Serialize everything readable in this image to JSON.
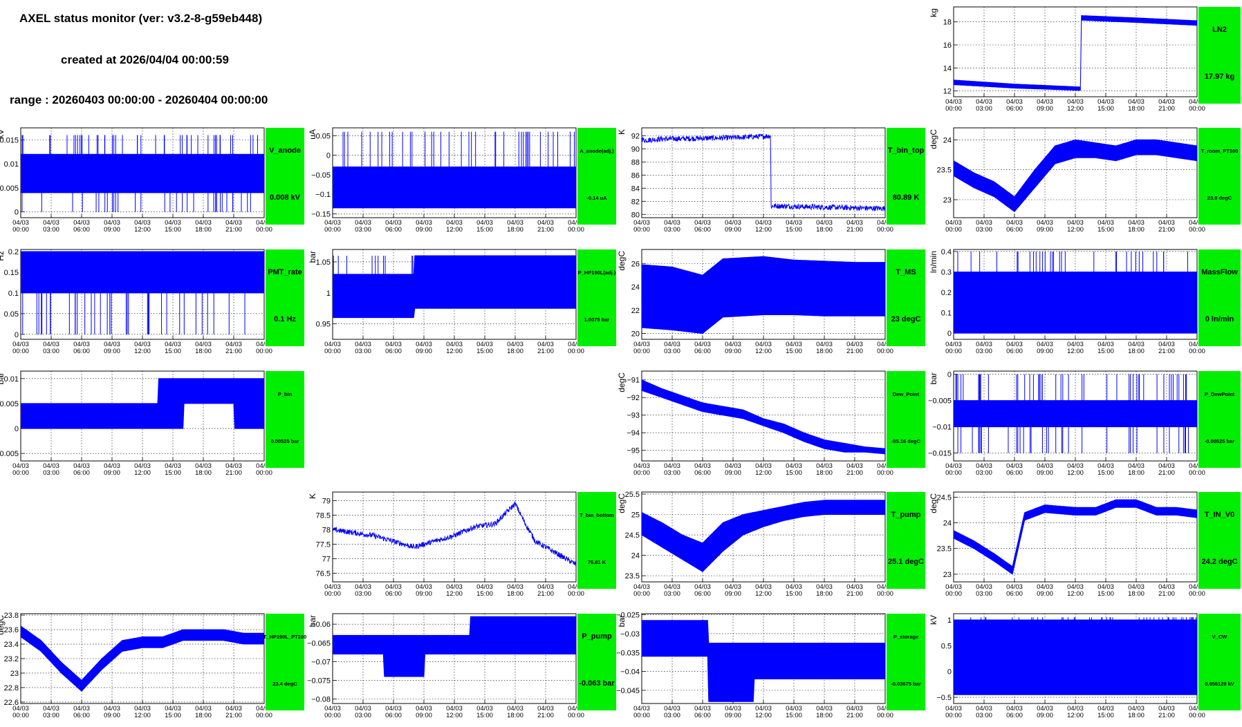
{
  "header": {
    "title": "AXEL status monitor (ver: v3.2-8-g59eb448)",
    "created": "created at 2026/04/04 00:00:59",
    "range": "range : 20260403 00:00:00 - 20260404 00:00:00"
  },
  "colors": {
    "trace": "#0000ff",
    "status_panel": "#00ee00",
    "grid": "#000000"
  },
  "time_ticks": [
    [
      "04/03",
      "00:00"
    ],
    [
      "04/03",
      "03:00"
    ],
    [
      "04/03",
      "06:00"
    ],
    [
      "04/03",
      "09:00"
    ],
    [
      "04/03",
      "12:00"
    ],
    [
      "04/03",
      "15:00"
    ],
    [
      "04/03",
      "18:00"
    ],
    [
      "04/03",
      "21:00"
    ],
    [
      "04/04",
      "00:00"
    ]
  ],
  "chart_data": [
    {
      "id": "LN2",
      "type": "line",
      "x_range_hours": [
        0,
        24
      ],
      "grid": true,
      "ylabel": "kg",
      "yticks": [
        "12",
        "14",
        "16",
        "18"
      ],
      "ytick_values": [
        12,
        14,
        16,
        18
      ],
      "ylim": [
        11.5,
        19.3
      ],
      "label": "LN2",
      "value": "17.97 kg",
      "style": "band",
      "x": [
        0,
        6,
        12.5,
        12.55,
        18,
        24
      ],
      "y_min": [
        12.55,
        12.25,
        12.05,
        18.15,
        17.95,
        17.7
      ],
      "y_max": [
        12.95,
        12.6,
        12.35,
        18.55,
        18.35,
        18.1
      ]
    },
    {
      "id": "V_anode",
      "type": "line",
      "x_range_hours": [
        0,
        24
      ],
      "grid": true,
      "ylabel": "kV",
      "yticks": [
        "0",
        "0.005",
        "0.01",
        "0.015"
      ],
      "ytick_values": [
        0,
        0.005,
        0.01,
        0.015
      ],
      "ylim": [
        -0.0012,
        0.0175
      ],
      "label": "V_anode",
      "value": "0.008 kV",
      "style": "band",
      "x": [
        0,
        24
      ],
      "y_min": [
        0.004,
        0.004
      ],
      "y_max": [
        0.012,
        0.012
      ],
      "spikes_up": 0.016,
      "spikes_down": 0
    },
    {
      "id": "A_anode(adj.)",
      "type": "line",
      "x_range_hours": [
        0,
        24
      ],
      "grid": true,
      "ylabel": "uA",
      "yticks": [
        "−0.15",
        "−0.1",
        "−0.05",
        "0",
        "0.05"
      ],
      "ytick_values": [
        -0.15,
        -0.1,
        -0.05,
        0,
        0.05
      ],
      "ylim": [
        -0.16,
        0.07
      ],
      "label": "A_anode(adj.)",
      "value": "-0.14 uA",
      "style": "band",
      "label_small": true,
      "x": [
        0,
        24
      ],
      "y_min": [
        -0.135,
        -0.135
      ],
      "y_max": [
        -0.03,
        -0.03
      ],
      "spikes_up": 0.06
    },
    {
      "id": "T_bin_top",
      "type": "line",
      "x_range_hours": [
        0,
        24
      ],
      "grid": true,
      "ylabel": "K",
      "yticks": [
        "80",
        "82",
        "84",
        "86",
        "88",
        "90",
        "92"
      ],
      "ytick_values": [
        80,
        82,
        84,
        86,
        88,
        90,
        92
      ],
      "ylim": [
        79.5,
        93.2
      ],
      "label": "T_bin_top",
      "value": "80.89 K",
      "style": "line",
      "x": [
        0,
        0.2,
        2,
        6,
        9,
        12,
        12.7,
        12.75,
        13,
        18,
        21,
        24
      ],
      "y": [
        91.7,
        91.3,
        91.5,
        91.6,
        91.7,
        91.9,
        92.0,
        81.2,
        81.3,
        81.1,
        81.0,
        80.9
      ]
    },
    {
      "id": "T_room_PT100",
      "type": "line",
      "x_range_hours": [
        0,
        24
      ],
      "grid": true,
      "ylabel": "degC",
      "yticks": [
        "23",
        "23.5",
        "24"
      ],
      "ytick_values": [
        23,
        23.5,
        24
      ],
      "ylim": [
        22.7,
        24.2
      ],
      "label": "T_room_PT100",
      "value": "23.9 degC",
      "style": "band",
      "label_small": true,
      "x": [
        0,
        2,
        4,
        6,
        8,
        10,
        12,
        14,
        16,
        18,
        20,
        22,
        24
      ],
      "y_min": [
        23.4,
        23.2,
        23.05,
        22.8,
        23.2,
        23.6,
        23.7,
        23.7,
        23.65,
        23.75,
        23.75,
        23.7,
        23.65
      ],
      "y_max": [
        23.65,
        23.45,
        23.3,
        23.05,
        23.5,
        23.9,
        24.0,
        23.95,
        23.9,
        24.0,
        24.0,
        23.95,
        23.9
      ]
    },
    {
      "id": "PMT_rate",
      "type": "line",
      "x_range_hours": [
        0,
        24
      ],
      "grid": true,
      "ylabel": "Hz",
      "yticks": [
        "0",
        "0.05",
        "0.1",
        "0.15",
        "0.2"
      ],
      "ytick_values": [
        0,
        0.05,
        0.1,
        0.15,
        0.2
      ],
      "ylim": [
        -0.012,
        0.205
      ],
      "label": "PMT_rate",
      "value": "0.1 Hz",
      "style": "band",
      "x": [
        0,
        24
      ],
      "y_min": [
        0.1,
        0.1
      ],
      "y_max": [
        0.2,
        0.2
      ],
      "spikes_down": 0
    },
    {
      "id": "P_HP190L(adj.)",
      "type": "line",
      "x_range_hours": [
        0,
        24
      ],
      "grid": true,
      "ylabel": "bar",
      "yticks": [
        "0.95",
        "1",
        "1.05"
      ],
      "ytick_values": [
        0.95,
        1,
        1.05
      ],
      "ylim": [
        0.925,
        1.07
      ],
      "label": "P_HP190L(adj.)",
      "value": "1.0075 bar",
      "style": "band",
      "label_small": true,
      "x": [
        0,
        8,
        8.05,
        24
      ],
      "y_min": [
        0.96,
        0.96,
        0.975,
        0.975
      ],
      "y_max": [
        1.03,
        1.03,
        1.06,
        1.06
      ],
      "spikes_up": 1.06
    },
    {
      "id": "T_MS",
      "type": "line",
      "x_range_hours": [
        0,
        24
      ],
      "grid": true,
      "ylabel": "degC",
      "yticks": [
        "20",
        "22",
        "24",
        "26"
      ],
      "ytick_values": [
        20,
        22,
        24,
        26
      ],
      "ylim": [
        19.5,
        27.2
      ],
      "label": "T_MS",
      "value": "23 degC",
      "style": "band",
      "x": [
        0,
        3,
        6,
        8,
        10,
        12,
        15,
        18,
        21,
        24
      ],
      "y_min": [
        20.5,
        20.3,
        20.0,
        21.4,
        21.5,
        21.6,
        21.6,
        21.5,
        21.5,
        21.5
      ],
      "y_max": [
        25.9,
        25.7,
        25.0,
        26.4,
        26.5,
        26.6,
        26.3,
        26.2,
        26.1,
        26.1
      ]
    },
    {
      "id": "MassFlow",
      "type": "line",
      "x_range_hours": [
        0,
        24
      ],
      "grid": true,
      "ylabel": "ln/min",
      "yticks": [
        "0",
        "0.1",
        "0.2",
        "0.3",
        "0.4"
      ],
      "ytick_values": [
        0,
        0.1,
        0.2,
        0.3,
        0.4
      ],
      "ylim": [
        -0.03,
        0.41
      ],
      "label": "MassFlow",
      "value": "0 ln/min",
      "style": "band",
      "x": [
        0,
        24
      ],
      "y_min": [
        0,
        0
      ],
      "y_max": [
        0.3,
        0.3
      ],
      "spikes_up": 0.4
    },
    {
      "id": "P_bin",
      "type": "line",
      "x_range_hours": [
        0,
        24
      ],
      "grid": true,
      "ylabel": "bar",
      "yticks": [
        "−0.005",
        "0",
        "0.005",
        "0.01"
      ],
      "ytick_values": [
        -0.005,
        0,
        0.005,
        0.01
      ],
      "ylim": [
        -0.0065,
        0.0115
      ],
      "label": "P_bin",
      "value": "0.00525 bar",
      "style": "band",
      "label_small": true,
      "x": [
        0,
        13.5,
        13.55,
        16,
        16.05,
        21,
        21.05,
        24
      ],
      "y_min": [
        0.0,
        0.0,
        0.0,
        0.0,
        0.005,
        0.005,
        0.0,
        0.0
      ],
      "y_max": [
        0.005,
        0.005,
        0.01,
        0.01,
        0.01,
        0.01,
        0.01,
        0.01
      ]
    },
    {
      "id": "Dew_Point",
      "type": "line",
      "x_range_hours": [
        0,
        24
      ],
      "grid": true,
      "ylabel": "degC",
      "yticks": [
        "−95",
        "−94",
        "−93",
        "−92",
        "−91"
      ],
      "ytick_values": [
        -95,
        -94,
        -93,
        -92,
        -91
      ],
      "ylim": [
        -95.6,
        -90.5
      ],
      "label": "Dew_Point",
      "value": "-95.16 degC",
      "style": "band",
      "label_small": true,
      "x": [
        0,
        2,
        4,
        6,
        8,
        10,
        12,
        14,
        16,
        18,
        20,
        22,
        24
      ],
      "y_min": [
        -91.6,
        -92.0,
        -92.4,
        -92.8,
        -93.0,
        -93.2,
        -93.6,
        -94.0,
        -94.5,
        -94.9,
        -95.1,
        -95.1,
        -95.2
      ],
      "y_max": [
        -91.0,
        -91.5,
        -91.9,
        -92.3,
        -92.5,
        -92.7,
        -93.2,
        -93.5,
        -94.0,
        -94.4,
        -94.6,
        -94.8,
        -94.9
      ]
    },
    {
      "id": "P_DewPoint",
      "type": "line",
      "x_range_hours": [
        0,
        24
      ],
      "grid": true,
      "ylabel": "bar",
      "yticks": [
        "−0.015",
        "−0.01",
        "−0.005",
        "0"
      ],
      "ytick_values": [
        -0.015,
        -0.01,
        -0.005,
        0
      ],
      "ylim": [
        -0.0165,
        0.0006
      ],
      "label": "P_DewPoint",
      "value": "-0.00525 bar",
      "style": "band",
      "label_small": true,
      "x": [
        0,
        24
      ],
      "y_min": [
        -0.01,
        -0.01
      ],
      "y_max": [
        -0.005,
        -0.005
      ],
      "spikes_up": 0,
      "spikes_down": -0.015
    },
    {
      "id": "T_bin_bottom",
      "type": "line",
      "x_range_hours": [
        0,
        24
      ],
      "grid": true,
      "ylabel": "K",
      "yticks": [
        "76.5",
        "77",
        "77.5",
        "78",
        "78.5",
        "79"
      ],
      "ytick_values": [
        76.5,
        77,
        77.5,
        78,
        78.5,
        79
      ],
      "ylim": [
        76.2,
        79.3
      ],
      "label": "T_bin_bottom",
      "value": "76.81 K",
      "style": "line",
      "label_small": true,
      "x": [
        0,
        2,
        4,
        6,
        8,
        10,
        12,
        14,
        16,
        18,
        19,
        20,
        22,
        24
      ],
      "y": [
        78.0,
        77.9,
        77.8,
        77.6,
        77.4,
        77.6,
        77.8,
        78.1,
        78.2,
        78.9,
        78.2,
        77.6,
        77.2,
        76.8
      ]
    },
    {
      "id": "T_pump",
      "type": "line",
      "x_range_hours": [
        0,
        24
      ],
      "grid": true,
      "ylabel": "degC",
      "yticks": [
        "23.5",
        "24",
        "24.5",
        "25",
        "25.5"
      ],
      "ytick_values": [
        23.5,
        24,
        24.5,
        25,
        25.5
      ],
      "ylim": [
        23.35,
        25.55
      ],
      "label": "T_pump",
      "value": "25.1 degC",
      "style": "band",
      "x": [
        0,
        2,
        4,
        6,
        8,
        10,
        12,
        14,
        16,
        18,
        20,
        22,
        24
      ],
      "y_min": [
        24.5,
        24.2,
        23.9,
        23.6,
        24.1,
        24.5,
        24.7,
        24.85,
        24.95,
        25.0,
        25.0,
        25.0,
        25.0
      ],
      "y_max": [
        25.05,
        24.8,
        24.5,
        24.3,
        24.8,
        25.0,
        25.1,
        25.2,
        25.3,
        25.35,
        25.35,
        25.35,
        25.35
      ]
    },
    {
      "id": "T_IN_V0",
      "type": "line",
      "x_range_hours": [
        0,
        24
      ],
      "grid": true,
      "ylabel": "degC",
      "yticks": [
        "23",
        "23.5",
        "24",
        "24.5"
      ],
      "ytick_values": [
        23,
        23.5,
        24,
        24.5
      ],
      "ylim": [
        22.85,
        24.6
      ],
      "label": "T_IN_V0",
      "value": "24.2 degC",
      "style": "band",
      "x": [
        0,
        2,
        4,
        5.8,
        7,
        9,
        12,
        14,
        16,
        18,
        20,
        22,
        24
      ],
      "y_min": [
        23.7,
        23.5,
        23.25,
        23.0,
        24.05,
        24.2,
        24.15,
        24.15,
        24.3,
        24.3,
        24.15,
        24.15,
        24.1
      ],
      "y_max": [
        23.85,
        23.65,
        23.4,
        23.15,
        24.2,
        24.35,
        24.3,
        24.3,
        24.45,
        24.45,
        24.3,
        24.3,
        24.25
      ]
    },
    {
      "id": "T_HP190L_PT100",
      "type": "line",
      "x_range_hours": [
        0,
        24
      ],
      "grid": true,
      "ylabel": "degC",
      "yticks": [
        "22.6",
        "22.8",
        "23",
        "23.2",
        "23.4",
        "23.6",
        "23.8"
      ],
      "ytick_values": [
        22.6,
        22.8,
        23,
        23.2,
        23.4,
        23.6,
        23.8
      ],
      "ylim": [
        22.58,
        23.82
      ],
      "label": "T_HP190L_PT100",
      "value": "23.4 degC",
      "style": "band",
      "label_small": true,
      "x": [
        0,
        2,
        4,
        6,
        8,
        10,
        12,
        14,
        16,
        18,
        20,
        22,
        24
      ],
      "y_min": [
        23.5,
        23.3,
        23.0,
        22.75,
        23.05,
        23.3,
        23.35,
        23.35,
        23.45,
        23.45,
        23.45,
        23.4,
        23.4
      ],
      "y_max": [
        23.65,
        23.45,
        23.15,
        22.9,
        23.2,
        23.45,
        23.5,
        23.5,
        23.6,
        23.6,
        23.6,
        23.55,
        23.55
      ]
    },
    {
      "id": "P_pump",
      "type": "line",
      "x_range_hours": [
        0,
        24
      ],
      "grid": true,
      "ylabel": "bar",
      "yticks": [
        "−0.08",
        "−0.075",
        "−0.07",
        "−0.065",
        "−0.06"
      ],
      "ytick_values": [
        -0.08,
        -0.075,
        -0.07,
        -0.065,
        -0.06
      ],
      "ylim": [
        -0.0812,
        -0.0572
      ],
      "label": "P_pump",
      "value": "-0.063 bar",
      "style": "band",
      "x": [
        0,
        5,
        5.05,
        9,
        9.05,
        13.5,
        13.55,
        24
      ],
      "y_min": [
        -0.068,
        -0.068,
        -0.074,
        -0.074,
        -0.068,
        -0.068,
        -0.068,
        -0.068
      ],
      "y_max": [
        -0.063,
        -0.063,
        -0.063,
        -0.063,
        -0.063,
        -0.063,
        -0.058,
        -0.058
      ]
    },
    {
      "id": "P_storage",
      "type": "line",
      "x_range_hours": [
        0,
        24
      ],
      "grid": true,
      "ylabel": "bar",
      "yticks": [
        "−0.045",
        "−0.04",
        "−0.035",
        "−0.03",
        "−0.025"
      ],
      "ytick_values": [
        -0.045,
        -0.04,
        -0.035,
        -0.03,
        -0.025
      ],
      "ylim": [
        -0.0485,
        -0.0247
      ],
      "label": "P_storage",
      "value": "-0.03675 bar",
      "style": "band",
      "label_small": true,
      "x": [
        0,
        6.5,
        6.55,
        11,
        11.05,
        24
      ],
      "y_min": [
        -0.036,
        -0.036,
        -0.048,
        -0.048,
        -0.042,
        -0.042
      ],
      "y_max": [
        -0.0265,
        -0.0265,
        -0.0325,
        -0.0325,
        -0.0325,
        -0.0325
      ]
    },
    {
      "id": "V_CW",
      "type": "line",
      "x_range_hours": [
        0,
        24
      ],
      "grid": true,
      "ylabel": "kV",
      "yticks": [
        "−0.5",
        "0",
        "0.5",
        "1"
      ],
      "ytick_values": [
        -0.5,
        0,
        0.5,
        1
      ],
      "ylim": [
        -0.62,
        1.12
      ],
      "label": "V_CW",
      "value": "0.956129 kV",
      "style": "band",
      "label_small": true,
      "x": [
        0,
        24
      ],
      "y_min": [
        -0.45,
        -0.45
      ],
      "y_max": [
        1.0,
        1.0
      ],
      "spikes_up": 1.05
    }
  ]
}
